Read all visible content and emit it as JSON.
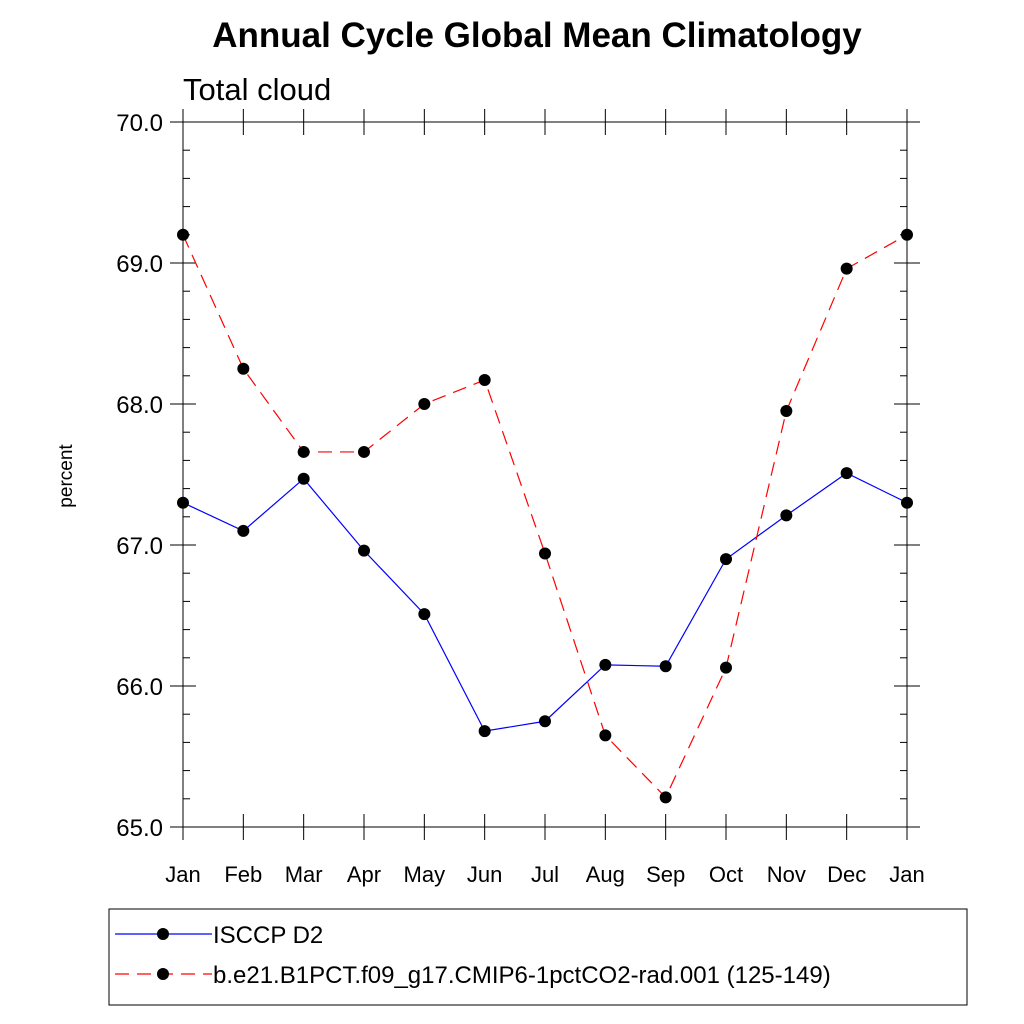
{
  "chart_data": {
    "type": "line",
    "title": "Annual Cycle Global Mean Climatology",
    "subtitle": "Total cloud",
    "xlabel": "",
    "ylabel": "percent",
    "categories": [
      "Jan",
      "Feb",
      "Mar",
      "Apr",
      "May",
      "Jun",
      "Jul",
      "Aug",
      "Sep",
      "Oct",
      "Nov",
      "Dec",
      "Jan"
    ],
    "ylim": [
      65.0,
      70.0
    ],
    "yticks": [
      65.0,
      66.0,
      67.0,
      68.0,
      69.0,
      70.0
    ],
    "ytick_labels": [
      "65.0",
      "66.0",
      "67.0",
      "68.0",
      "69.0",
      "70.0"
    ],
    "grid": false,
    "legend_position": "bottom",
    "series": [
      {
        "name": "ISCCP D2",
        "color": "#0000ff",
        "line_style": "solid",
        "marker": "filled-circle",
        "values": [
          67.3,
          67.1,
          67.47,
          66.96,
          66.51,
          65.68,
          65.75,
          66.15,
          66.14,
          66.9,
          67.21,
          67.51,
          67.3
        ]
      },
      {
        "name": "b.e21.B1PCT.f09_g17.CMIP6-1pctCO2-rad.001 (125-149)",
        "color": "#ff0000",
        "line_style": "dashed",
        "marker": "filled-circle",
        "values": [
          69.2,
          68.25,
          67.66,
          67.66,
          68.0,
          68.17,
          66.94,
          65.65,
          65.21,
          66.13,
          67.95,
          68.96,
          69.2
        ]
      }
    ]
  }
}
